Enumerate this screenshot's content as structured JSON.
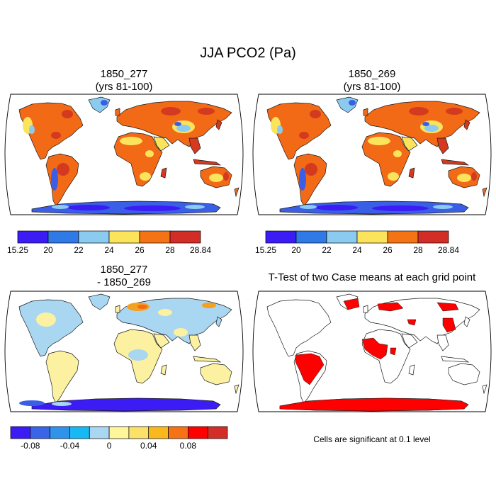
{
  "title": "JJA PCO2 (Pa)",
  "panels": [
    {
      "id": "case1",
      "title_line1": "1850_277",
      "title_line2": "(yrs 81-100)"
    },
    {
      "id": "case2",
      "title_line1": "1850_269",
      "title_line2": "(yrs 81-100)"
    },
    {
      "id": "diff",
      "title_line1": "1850_277",
      "title_line2": "- 1850_269"
    },
    {
      "id": "ttest",
      "title_line1": "T-Test of two Case means at each grid point"
    }
  ],
  "colorbars": {
    "absolute": {
      "colors": [
        "#3b1cf5",
        "#2f7ae6",
        "#8ccbf0",
        "#fbe35c",
        "#f47314",
        "#d22d26"
      ],
      "labels": [
        "15.25",
        "20",
        "22",
        "24",
        "26",
        "28",
        "28.84"
      ]
    },
    "difference": {
      "colors": [
        "#3b1cf5",
        "#3a64e8",
        "#2f93e9",
        "#17b8f3",
        "#a9d6f0",
        "#fff59a",
        "#fbe069",
        "#fbb81c",
        "#f57216",
        "#ff0000",
        "#d22d26"
      ],
      "labels": [
        "-0.08",
        "-0.04",
        "0",
        "0.04",
        "0.08"
      ]
    }
  },
  "map_colors": {
    "land_orange": "#f26a16",
    "land_red": "#d43a1f",
    "land_yellow": "#fbe35c",
    "land_lightblue": "#8ccbf0",
    "land_blue": "#3a5ee6",
    "land_violet": "#3b1cf5",
    "diff_yellow": "#fbf1a0",
    "diff_lightblue": "#a9d6f0",
    "diff_orange": "#f3a11e",
    "ttest_red": "#ff0000"
  },
  "footnote": "Cells are significant at 0.1 level"
}
